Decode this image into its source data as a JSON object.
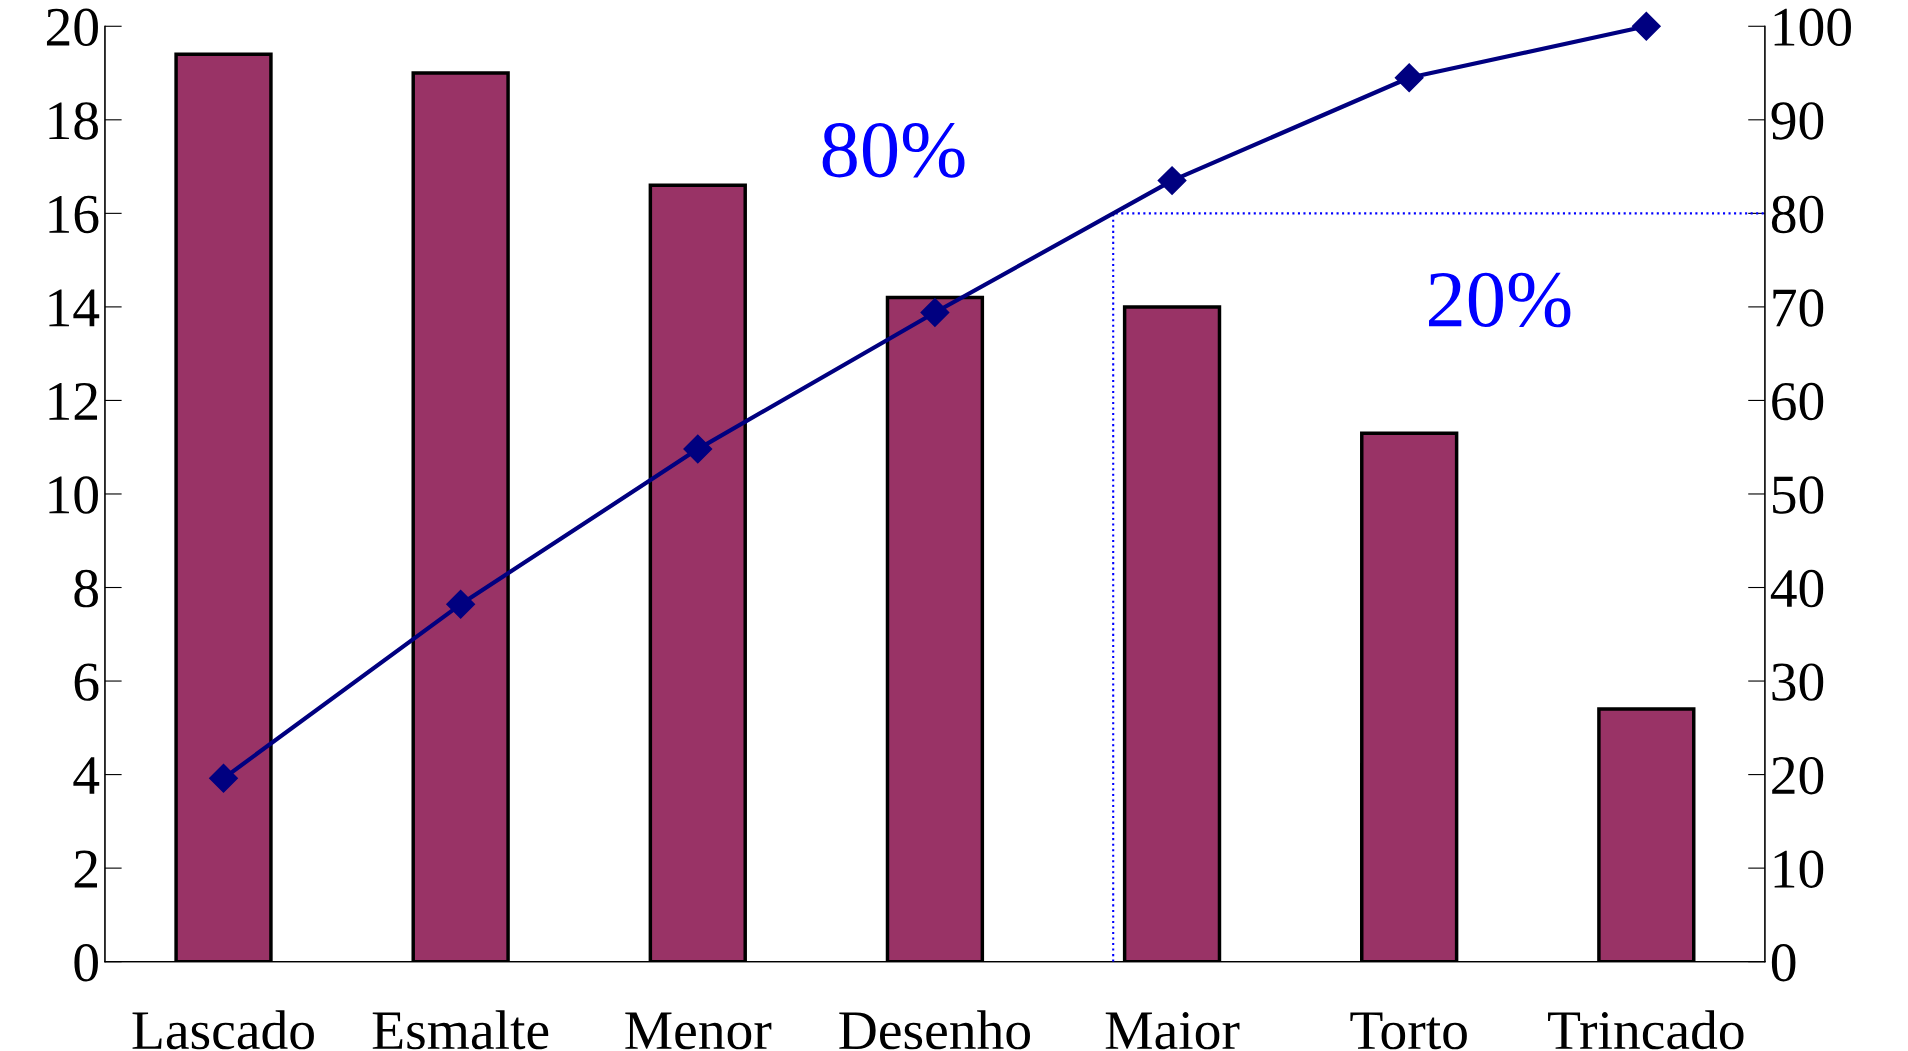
{
  "chart_data": {
    "type": "bar",
    "categories": [
      "Lascado",
      "Esmalte",
      "Menor",
      "Desenho",
      "Maior",
      "Torto",
      "Trincado"
    ],
    "series": [
      {
        "color": "#993366",
        "values": [
          19.4,
          19.0,
          16.6,
          14.2,
          14.0,
          11.3,
          5.4
        ]
      },
      {
        "type": "line",
        "axis": "y2",
        "color": "#000080",
        "marker": "diamond",
        "values": [
          19.6,
          38.2,
          54.8,
          69.4,
          83.5,
          94.5,
          100
        ]
      }
    ],
    "ylim": [
      0,
      20
    ],
    "yticks": [
      0,
      2,
      4,
      6,
      8,
      10,
      12,
      14,
      16,
      18,
      20
    ],
    "y2lim": [
      0,
      100
    ],
    "y2ticks": [
      0,
      10,
      20,
      30,
      40,
      50,
      60,
      70,
      80,
      90,
      100
    ],
    "ref_lines": [
      {
        "axis": "y2",
        "value": 80,
        "color": "#0000ff",
        "line_style": "dotted"
      }
    ],
    "annotations": [
      "80%",
      "20%"
    ],
    "grid": false,
    "legend": false
  }
}
